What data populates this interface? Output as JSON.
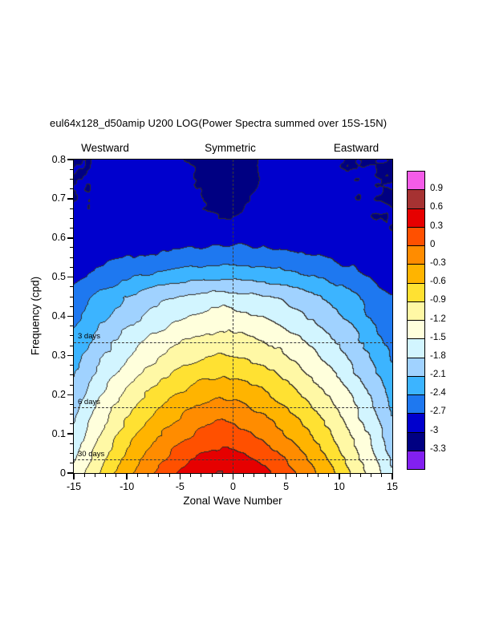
{
  "header_labels": {
    "west": "Westward",
    "center": "Symmetric",
    "east": "Eastward"
  },
  "axes": {
    "x": {
      "tick_labels": [
        "-15",
        "-10",
        "-5",
        "0",
        "5",
        "10",
        "15"
      ],
      "minor_step": 1
    },
    "y": {
      "tick_labels": [
        "0",
        "0.1",
        "0.2",
        "0.3",
        "0.4",
        "0.5",
        "0.6",
        "0.7",
        "0.8"
      ],
      "minor_step": 0.025
    }
  },
  "colorbar": {
    "labels": [
      "0.9",
      "0.6",
      "0.3",
      "0",
      "-0.3",
      "-0.6",
      "-0.9",
      "-1.2",
      "-1.5",
      "-1.8",
      "-2.1",
      "-2.4",
      "-2.7",
      "-3",
      "-3.3"
    ],
    "colors": [
      "#F45CE8",
      "#A63232",
      "#E60000",
      "#FF5000",
      "#FF8C00",
      "#FFB400",
      "#FFE132",
      "#FFF8A5",
      "#FFFFDC",
      "#D2F5FF",
      "#A0D2FF",
      "#3CB4FF",
      "#1E78F0",
      "#0000CD",
      "#000082",
      "#8220F0"
    ]
  },
  "chart_data": {
    "type": "heatmap",
    "style": "filled-contour",
    "title": "eul64x128_d50amip U200 LOG(Power Spectra summed over 15S-15N)",
    "xlabel": "Zonal Wave Number",
    "ylabel": "Frequency (cpd)",
    "xlim": [
      -15,
      15
    ],
    "ylim": [
      0,
      0.8
    ],
    "grid": false,
    "legend_position": "right-colorbar",
    "x_wavenumbers": [
      -15,
      -13,
      -11,
      -9,
      -7,
      -5,
      -3,
      -1,
      1,
      3,
      5,
      7,
      9,
      11,
      13,
      15
    ],
    "y_frequencies": [
      0.0,
      0.05,
      0.1,
      0.15,
      0.2,
      0.25,
      0.3,
      0.35,
      0.4,
      0.45,
      0.5,
      0.55,
      0.6,
      0.65,
      0.7,
      0.75,
      0.8
    ],
    "contour_levels": [
      0.9,
      0.6,
      0.3,
      0,
      -0.3,
      -0.6,
      -0.9,
      -1.2,
      -1.5,
      -1.8,
      -2.1,
      -2.4,
      -2.7,
      -3,
      -3.3
    ],
    "log_power_values": [
      [
        -1.45,
        -0.99,
        -0.57,
        -0.22,
        0.09,
        0.34,
        0.53,
        0.62,
        0.54,
        0.37,
        0.14,
        -0.15,
        -0.48,
        -0.86,
        -1.29,
        -1.77
      ],
      [
        -1.59,
        -1.15,
        -0.76,
        -0.41,
        -0.12,
        0.12,
        0.29,
        0.38,
        0.3,
        0.14,
        -0.08,
        -0.35,
        -0.66,
        -1.03,
        -1.43,
        -1.89
      ],
      [
        -1.72,
        -1.3,
        -0.93,
        -0.6,
        -0.33,
        -0.1,
        0.07,
        0.15,
        0.08,
        -0.08,
        -0.29,
        -0.54,
        -0.84,
        -1.18,
        -1.57,
        -2.0
      ],
      [
        -1.84,
        -1.45,
        -1.1,
        -0.8,
        -0.54,
        -0.33,
        -0.18,
        -0.1,
        -0.17,
        -0.31,
        -0.51,
        -0.75,
        -1.02,
        -1.34,
        -1.7,
        -2.1
      ],
      [
        -1.97,
        -1.6,
        -1.28,
        -1.0,
        -0.76,
        -0.57,
        -0.42,
        -0.35,
        -0.42,
        -0.55,
        -0.73,
        -0.95,
        -1.21,
        -1.5,
        -1.84,
        -2.21
      ],
      [
        -2.11,
        -1.77,
        -1.48,
        -1.22,
        -1.0,
        -0.82,
        -0.69,
        -0.62,
        -0.68,
        -0.8,
        -0.97,
        -1.17,
        -1.41,
        -1.68,
        -1.99,
        -2.33
      ],
      [
        -2.24,
        -1.94,
        -1.66,
        -1.43,
        -1.23,
        -1.06,
        -0.94,
        -0.88,
        -0.94,
        -1.05,
        -1.2,
        -1.39,
        -1.6,
        -1.85,
        -2.13,
        -2.45
      ],
      [
        -2.36,
        -2.09,
        -1.84,
        -1.62,
        -1.44,
        -1.29,
        -1.18,
        -1.12,
        -1.17,
        -1.27,
        -1.41,
        -1.58,
        -1.78,
        -2.01,
        -2.26,
        -2.55
      ],
      [
        -2.51,
        -2.25,
        -2.03,
        -1.83,
        -1.67,
        -1.53,
        -1.43,
        -1.38,
        -1.43,
        -1.52,
        -1.64,
        -1.8,
        -1.98,
        -2.18,
        -2.42,
        -2.68
      ],
      [
        -2.57,
        -2.37,
        -2.19,
        -2.03,
        -1.9,
        -1.79,
        -1.71,
        -1.67,
        -1.71,
        -1.78,
        -1.88,
        -2.0,
        -2.15,
        -2.31,
        -2.5,
        -2.7
      ],
      [
        -2.77,
        -2.63,
        -2.51,
        -2.4,
        -2.31,
        -2.23,
        -2.18,
        -2.15,
        -2.18,
        -2.23,
        -2.3,
        -2.38,
        -2.48,
        -2.59,
        -2.72,
        -2.87
      ],
      [
        -2.9,
        -2.82,
        -2.75,
        -2.69,
        -2.64,
        -2.6,
        -2.57,
        -2.55,
        -2.56,
        -2.59,
        -2.63,
        -2.68,
        -2.73,
        -2.8,
        -2.87,
        -2.95
      ],
      [
        -2.96,
        -2.92,
        -2.88,
        -2.85,
        -2.83,
        -2.81,
        -2.8,
        -2.79,
        -2.8,
        -2.81,
        -2.83,
        -2.86,
        -2.89,
        -2.92,
        -2.95,
        -2.98
      ],
      [
        -2.98,
        -2.96,
        -2.94,
        -2.92,
        -2.9,
        -2.89,
        -2.93,
        -3.02,
        -2.98,
        -2.89,
        -2.9,
        -2.91,
        -2.93,
        -2.95,
        -2.97,
        -2.99
      ],
      [
        -2.99,
        -2.97,
        -2.95,
        -2.94,
        -2.92,
        -2.91,
        -2.99,
        -3.12,
        -3.05,
        -2.91,
        -2.92,
        -2.93,
        -2.95,
        -2.96,
        -2.98,
        -3.0
      ],
      [
        -3.0,
        -2.98,
        -2.97,
        -2.95,
        -2.94,
        -2.93,
        -3.04,
        -3.22,
        -3.13,
        -2.93,
        -2.94,
        -2.95,
        -2.96,
        -2.98,
        -2.99,
        -3.01
      ],
      [
        -3.01,
        -2.99,
        -2.98,
        -2.96,
        -2.95,
        -2.94,
        -3.08,
        -3.28,
        -3.18,
        -2.94,
        -2.95,
        -2.96,
        -2.97,
        -2.99,
        -3.0,
        -3.02
      ]
    ],
    "reference_lines": [
      {
        "orientation": "horizontal",
        "label": "3 days",
        "frequency": 0.3333
      },
      {
        "orientation": "horizontal",
        "label": "6 days",
        "frequency": 0.1667
      },
      {
        "orientation": "horizontal",
        "label": "30 days",
        "frequency": 0.0333
      },
      {
        "orientation": "vertical",
        "label": "",
        "wavenumber": 0
      }
    ]
  }
}
